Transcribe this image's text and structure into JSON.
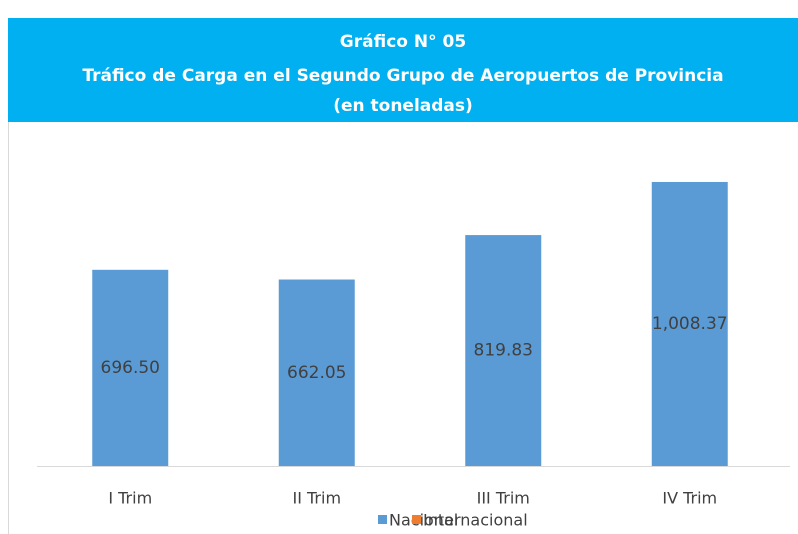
{
  "chart_data": {
    "type": "bar",
    "title": [
      "Gráfico N° 05",
      "Tráfico de Carga en el Segundo Grupo de Aeropuertos de Provincia",
      "(en toneladas)"
    ],
    "categories": [
      "I Trim",
      "II Trim",
      "III Trim",
      "IV Trim"
    ],
    "series": [
      {
        "name": "Nacional",
        "color": "#5b9bd5",
        "values": [
          696.5,
          662.05,
          819.83,
          1008.37
        ],
        "value_labels": [
          "696.50",
          "662.05",
          "819.83",
          "1,008.37"
        ]
      },
      {
        "name": "Internacional",
        "color": "#ed7d31",
        "values": [
          null,
          null,
          null,
          null
        ]
      }
    ],
    "ylim": [
      0,
      1200
    ]
  }
}
